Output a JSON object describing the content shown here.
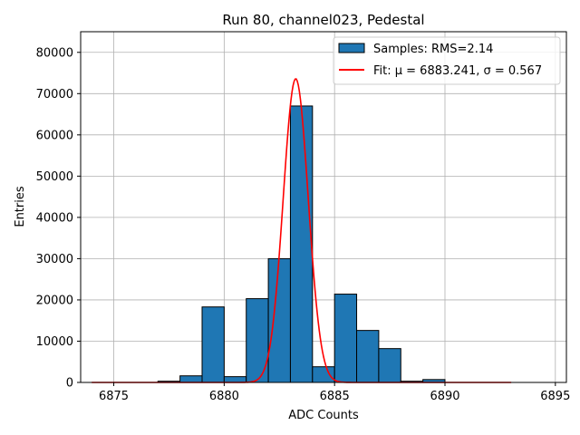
{
  "chart_data": {
    "type": "bar",
    "title": "Run 80, channel023, Pedestal",
    "xlabel": "ADC Counts",
    "ylabel": "Entries",
    "xlim": [
      6873.5,
      6895.5
    ],
    "ylim": [
      0,
      85000
    ],
    "grid": true,
    "legend_position": "top-right",
    "xticks": [
      6875,
      6880,
      6885,
      6890,
      6895
    ],
    "yticks": [
      0,
      10000,
      20000,
      30000,
      40000,
      50000,
      60000,
      70000,
      80000
    ],
    "histogram": {
      "name": "Samples: RMS=2.14",
      "color": "#1f77b4",
      "bin_edges": [
        6877,
        6878,
        6879,
        6880,
        6881,
        6882,
        6883,
        6884,
        6885,
        6886,
        6887,
        6888,
        6889,
        6890,
        6891
      ],
      "counts": [
        300,
        1600,
        18300,
        1400,
        20300,
        30000,
        67000,
        3800,
        21400,
        12600,
        8200,
        300,
        700,
        0
      ]
    },
    "fit": {
      "name": "Fit: μ = 6883.241, σ = 0.567",
      "color": "#ff0000",
      "mu": 6883.241,
      "sigma": 0.567,
      "amplitude": 73600,
      "x_range": [
        6874,
        6893
      ]
    }
  }
}
